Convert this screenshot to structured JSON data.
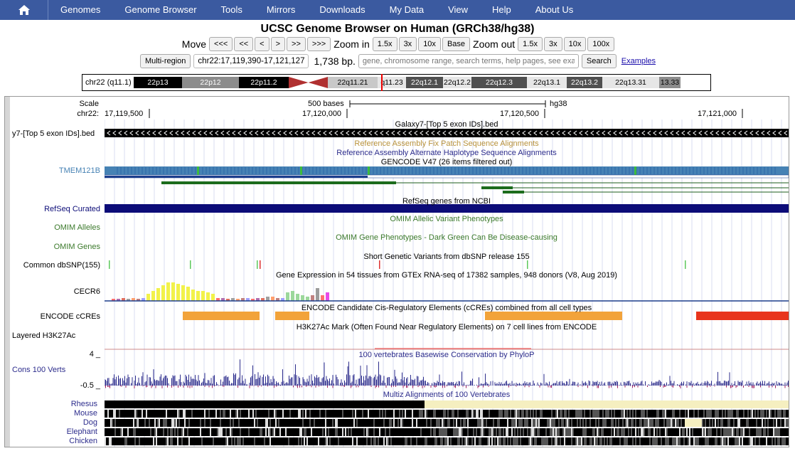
{
  "nav": {
    "home_icon": "home-icon",
    "items": [
      "Genomes",
      "Genome Browser",
      "Tools",
      "Mirrors",
      "Downloads",
      "My Data",
      "View",
      "Help",
      "About Us"
    ]
  },
  "title": "UCSC Genome Browser on Human (GRCh38/hg38)",
  "move": {
    "label": "Move",
    "buttons": [
      "<<<",
      "<<",
      "<",
      ">",
      ">>",
      ">>>"
    ],
    "zoom_in_label": "Zoom in",
    "zoom_in_buttons": [
      "1.5x",
      "3x",
      "10x",
      "Base"
    ],
    "zoom_out_label": "Zoom out",
    "zoom_out_buttons": [
      "1.5x",
      "3x",
      "10x",
      "100x"
    ]
  },
  "position": {
    "multi_region": "Multi-region",
    "value": "chr22:17,119,390-17,121,127",
    "size": "1,738 bp.",
    "search_placeholder": "gene, chromosome range, search terms, help pages, see examples",
    "search_button": "Search",
    "examples_link": "Examples"
  },
  "ideogram": {
    "chrom_label": "chr22 (q11.1)",
    "bands": [
      {
        "name": "22p13",
        "color": "#000000",
        "text": "#ffffff"
      },
      {
        "name": "22p12",
        "color": "#8c8c8c",
        "text": "#ffffff"
      },
      {
        "name": "22p11.2",
        "color": "#000000",
        "text": "#ffffff"
      },
      {
        "name": "",
        "color": "#b03030",
        "text": "#ffffff"
      },
      {
        "name": "22q11.21",
        "color": "#c8c8c8",
        "text": "#000000"
      },
      {
        "name": "q11.23",
        "color": "#e6e6e6",
        "text": "#000000"
      },
      {
        "name": "22q12.1",
        "color": "#505050",
        "text": "#ffffff"
      },
      {
        "name": "22q12.2",
        "color": "#e6e6e6",
        "text": "#000000"
      },
      {
        "name": "22q12.3",
        "color": "#505050",
        "text": "#ffffff"
      },
      {
        "name": "22q13.1",
        "color": "#e6e6e6",
        "text": "#000000"
      },
      {
        "name": "22q13.2",
        "color": "#505050",
        "text": "#ffffff"
      },
      {
        "name": "22q13.31",
        "color": "#e6e6e6",
        "text": "#000000"
      },
      {
        "name": "13.33",
        "color": "#8c8c8c",
        "text": "#000000"
      }
    ]
  },
  "ruler": {
    "scale_label": "Scale",
    "chrom_label": "chr22:",
    "scale_text": "500 bases",
    "assembly": "hg38",
    "ticks": [
      "17,119,500",
      "17,120,000",
      "17,120,500",
      "17,121,000"
    ]
  },
  "tracks": {
    "galaxy_title": "Galaxy7-[Top 5 exon IDs].bed",
    "galaxy_label": "y7-[Top 5 exon IDs].bed",
    "fix_patch": "Reference Assembly Fix Patch Sequence Alignments",
    "alt_haplo": "Reference Assembly Alternate Haplotype Sequence Alignments",
    "gencode_title": "GENCODE V47 (26 items filtered out)",
    "gencode_label": "TMEM121B",
    "refseq_title": "RefSeq genes from NCBI",
    "refseq_label": "RefSeq Curated",
    "omim_alleles_title": "OMIM Allelic Variant Phenotypes",
    "omim_alleles_label": "OMIM Alleles",
    "omim_genes_title": "OMIM Gene Phenotypes - Dark Green Can Be Disease-causing",
    "omim_genes_label": "OMIM Genes",
    "snp_title": "Short Genetic Variants from dbSNP release 155",
    "snp_label": "Common dbSNP(155)",
    "gtex_title": "Gene Expression in 54 tissues from GTEx RNA-seq of 17382 samples, 948 donors (V8, Aug 2019)",
    "gtex_label": "CECR6",
    "encode_title": "ENCODE Candidate Cis-Regulatory Elements (cCREs) combined from all cell types",
    "encode_label": "ENCODE cCREs",
    "h3k27_title": "H3K27Ac Mark (Often Found Near Regulatory Elements) on 7 cell lines from ENCODE",
    "h3k27_label": "Layered H3K27Ac",
    "cons_title": "100 vertebrates Basewise Conservation by PhyloP",
    "cons_label": "Cons 100 Verts",
    "cons_max": "4 _",
    "cons_min": "-0.5 _",
    "multiz_title": "Multiz Alignments of 100 Vertebrates",
    "species": [
      "Rhesus",
      "Mouse",
      "Dog",
      "Elephant",
      "Chicken"
    ]
  },
  "colors": {
    "nav_bg": "#3b5aa0",
    "gencode": "#4682b4",
    "gencode_dark": "#1c3d8c",
    "refseq": "#0c0c78",
    "omim": "#3c7a2c",
    "encode_orange": "#f2a33a",
    "encode_red": "#e8341c",
    "cons": "#2c2c8c",
    "multiz": "#2c2c8c"
  }
}
